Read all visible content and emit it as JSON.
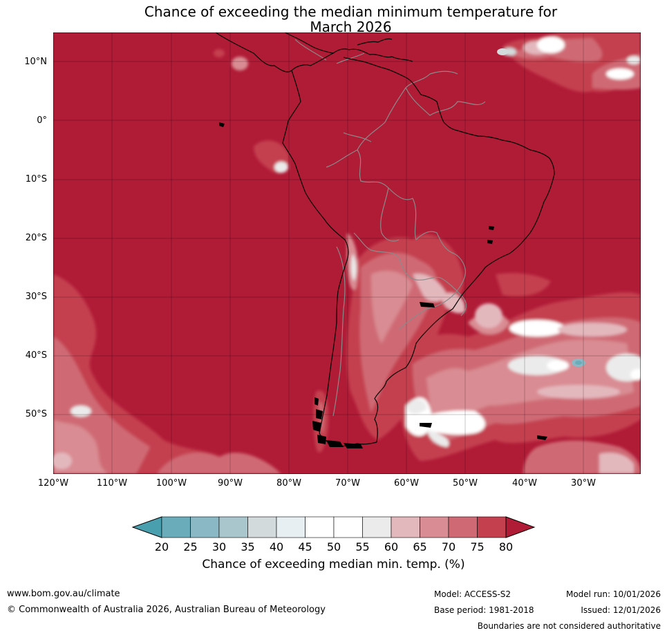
{
  "title": {
    "line1": "Chance of exceeding the median minimum temperature for",
    "line2": "March 2026"
  },
  "map": {
    "lat_labels": [
      "10°N",
      "0°",
      "10°S",
      "20°S",
      "30°S",
      "40°S",
      "50°S"
    ],
    "lon_labels": [
      "120°W",
      "110°W",
      "100°W",
      "90°W",
      "80°W",
      "70°W",
      "60°W",
      "50°W",
      "40°W",
      "30°W"
    ],
    "colors": {
      "background_80plus": "#b01b36",
      "c75_80": "#c4404f",
      "c70_75": "#cf6a74",
      "c65_70": "#d98c93",
      "c60_65": "#e3b8bd",
      "c55_60": "#ebebeb",
      "c45_55": "#ffffff",
      "c40_45": "#e8eff2",
      "c35_40": "#d3dadc",
      "c30_35": "#a9c6cd",
      "c25_30": "#8ab8c4",
      "c20_25": "#6aacb9",
      "below20": "#4a9fae",
      "coastline": "#000000",
      "borders": "#8a8a8a",
      "gridlines": "#000000"
    }
  },
  "colorbar": {
    "labels": [
      "20",
      "25",
      "30",
      "35",
      "40",
      "45",
      "50",
      "55",
      "60",
      "65",
      "70",
      "75",
      "80"
    ],
    "title": "Chance of exceeding median min. temp. (%)"
  },
  "footer": {
    "website": "www.bom.gov.au/climate",
    "copyright": "© Commonwealth of Australia 2026, Australian Bureau of Meteorology",
    "model": "Model: ACCESS-S2",
    "base_period": "Base period: 1981-2018",
    "model_run": "Model run: 10/01/2026",
    "issued": "Issued: 12/01/2026",
    "disclaimer": "Boundaries are not considered authoritative"
  }
}
